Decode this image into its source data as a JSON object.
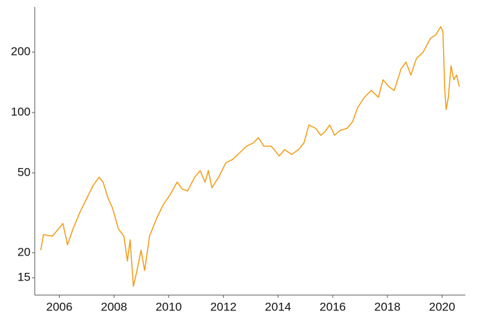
{
  "chart_data": {
    "type": "line",
    "log_y": true,
    "color": "#f29a12",
    "xlim": [
      2005.1,
      2020.85
    ],
    "xticks": [
      2006,
      2008,
      2010,
      2012,
      2014,
      2016,
      2018,
      2020
    ],
    "ylim": [
      12.3,
      336
    ],
    "yticks": [
      15,
      20,
      50,
      100,
      200
    ],
    "grid": false,
    "x": [
      2005.32,
      2005.42,
      2005.75,
      2006.13,
      2006.3,
      2006.5,
      2006.76,
      2007.01,
      2007.22,
      2007.45,
      2007.6,
      2007.78,
      2007.95,
      2008.16,
      2008.36,
      2008.49,
      2008.59,
      2008.71,
      2008.84,
      2008.99,
      2009.12,
      2009.3,
      2009.55,
      2009.8,
      2010.06,
      2010.31,
      2010.49,
      2010.69,
      2010.95,
      2011.15,
      2011.33,
      2011.45,
      2011.58,
      2011.83,
      2012.09,
      2012.34,
      2012.59,
      2012.85,
      2013.1,
      2013.28,
      2013.48,
      2013.74,
      2013.86,
      2014.04,
      2014.24,
      2014.5,
      2014.75,
      2014.95,
      2015.13,
      2015.38,
      2015.56,
      2015.71,
      2015.89,
      2016.07,
      2016.27,
      2016.52,
      2016.73,
      2016.91,
      2017.16,
      2017.41,
      2017.67,
      2017.84,
      2018.05,
      2018.25,
      2018.5,
      2018.68,
      2018.86,
      2019.06,
      2019.31,
      2019.57,
      2019.77,
      2019.95,
      2020.03,
      2020.1,
      2020.15,
      2020.23,
      2020.33,
      2020.43,
      2020.53,
      2020.63
    ],
    "values": [
      20.6,
      24.6,
      24.2,
      28,
      21.9,
      26.3,
      32,
      37.5,
      42.9,
      47.6,
      45,
      37.5,
      33.3,
      26.3,
      24.2,
      18.2,
      23.2,
      13.6,
      16.3,
      20.6,
      16.3,
      24.2,
      29.5,
      34.7,
      39.1,
      45,
      41.6,
      40.6,
      47.6,
      51.3,
      45,
      51.3,
      42.2,
      47.6,
      56.2,
      58.4,
      62.9,
      68,
      70.6,
      74.9,
      68,
      68,
      65.4,
      60.7,
      65.4,
      61.8,
      65.4,
      70.6,
      86.7,
      83.3,
      77,
      80,
      86.7,
      77,
      81.5,
      83.3,
      90.2,
      105.7,
      119.1,
      128.9,
      119.1,
      145.7,
      134.7,
      128.9,
      164.9,
      178.6,
      153.8,
      185.6,
      200,
      234,
      244,
      268,
      254,
      128.9,
      103.5,
      119.1,
      170.9,
      145.7,
      153.8,
      134.7
    ]
  }
}
